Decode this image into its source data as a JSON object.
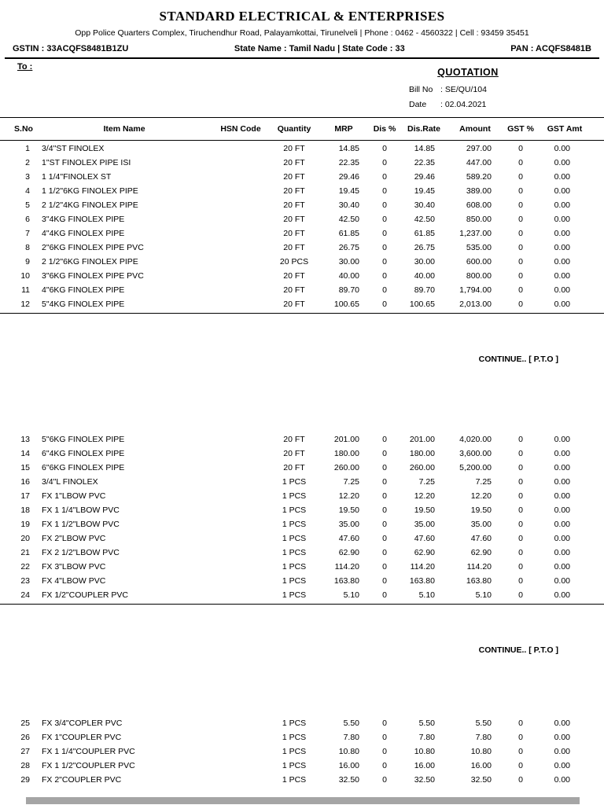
{
  "company": {
    "name": "STANDARD ELECTRICAL & ENTERPRISES",
    "address": "Opp Police Quarters Complex, Tiruchendhur Road,  Palayamkottai, Tirunelveli |  Phone : 0462 - 4560322 | Cell : 93459 35451",
    "gstin": "GSTIN :  33ACQFS8481B1ZU",
    "state": "State Name : Tamil Nadu   | State Code : 33",
    "pan": "PAN : ACQFS8481B"
  },
  "meta": {
    "to_label": "To :",
    "doc_title": "QUOTATION",
    "bill_no_label": "Bill No",
    "bill_no_value": ": SE/QU/104",
    "date_label": "Date",
    "date_value": ": 02.04.2021"
  },
  "table": {
    "columns": [
      "S.No",
      "Item Name",
      "HSN Code",
      "Quantity",
      "MRP",
      "Dis %",
      "Dis.Rate",
      "Amount",
      "GST %",
      "GST Amt"
    ],
    "continue_text": "CONTINUE.. [ P.T.O ]",
    "sections": [
      {
        "rows": [
          [
            "1",
            "3/4\"ST FINOLEX",
            "",
            "20 FT",
            "14.85",
            "0",
            "14.85",
            "297.00",
            "0",
            "0.00"
          ],
          [
            "2",
            "1\"ST FINOLEX PIPE ISI",
            "",
            "20 FT",
            "22.35",
            "0",
            "22.35",
            "447.00",
            "0",
            "0.00"
          ],
          [
            "3",
            "1 1/4\"FINOLEX ST",
            "",
            "20 FT",
            "29.46",
            "0",
            "29.46",
            "589.20",
            "0",
            "0.00"
          ],
          [
            "4",
            "1 1/2\"6KG FINOLEX PIPE",
            "",
            "20 FT",
            "19.45",
            "0",
            "19.45",
            "389.00",
            "0",
            "0.00"
          ],
          [
            "5",
            "2 1/2\"4KG FINOLEX PIPE",
            "",
            "20 FT",
            "30.40",
            "0",
            "30.40",
            "608.00",
            "0",
            "0.00"
          ],
          [
            "6",
            "3\"4KG FINOLEX PIPE",
            "",
            "20 FT",
            "42.50",
            "0",
            "42.50",
            "850.00",
            "0",
            "0.00"
          ],
          [
            "7",
            "4\"4KG FINOLEX PIPE",
            "",
            "20 FT",
            "61.85",
            "0",
            "61.85",
            "1,237.00",
            "0",
            "0.00"
          ],
          [
            "8",
            "2\"6KG FINOLEX PIPE PVC",
            "",
            "20 FT",
            "26.75",
            "0",
            "26.75",
            "535.00",
            "0",
            "0.00"
          ],
          [
            "9",
            "2 1/2\"6KG FINOLEX PIPE",
            "",
            "20 PCS",
            "30.00",
            "0",
            "30.00",
            "600.00",
            "0",
            "0.00"
          ],
          [
            "10",
            "3\"6KG FINOLEX PIPE PVC",
            "",
            "20 FT",
            "40.00",
            "0",
            "40.00",
            "800.00",
            "0",
            "0.00"
          ],
          [
            "11",
            "4\"6KG FINOLEX PIPE",
            "",
            "20 FT",
            "89.70",
            "0",
            "89.70",
            "1,794.00",
            "0",
            "0.00"
          ],
          [
            "12",
            "5\"4KG FINOLEX PIPE",
            "",
            "20 FT",
            "100.65",
            "0",
            "100.65",
            "2,013.00",
            "0",
            "0.00"
          ]
        ]
      },
      {
        "rows": [
          [
            "13",
            "5\"6KG FINOLEX PIPE",
            "",
            "20 FT",
            "201.00",
            "0",
            "201.00",
            "4,020.00",
            "0",
            "0.00"
          ],
          [
            "14",
            "6\"4KG FINOLEX PIPE",
            "",
            "20 FT",
            "180.00",
            "0",
            "180.00",
            "3,600.00",
            "0",
            "0.00"
          ],
          [
            "15",
            "6\"6KG FINOLEX PIPE",
            "",
            "20 FT",
            "260.00",
            "0",
            "260.00",
            "5,200.00",
            "0",
            "0.00"
          ],
          [
            "16",
            "3/4\"L FINOLEX",
            "",
            "1 PCS",
            "7.25",
            "0",
            "7.25",
            "7.25",
            "0",
            "0.00"
          ],
          [
            "17",
            "FX 1\"LBOW PVC",
            "",
            "1 PCS",
            "12.20",
            "0",
            "12.20",
            "12.20",
            "0",
            "0.00"
          ],
          [
            "18",
            "FX 1 1/4\"LBOW PVC",
            "",
            "1 PCS",
            "19.50",
            "0",
            "19.50",
            "19.50",
            "0",
            "0.00"
          ],
          [
            "19",
            "FX 1 1/2\"LBOW PVC",
            "",
            "1 PCS",
            "35.00",
            "0",
            "35.00",
            "35.00",
            "0",
            "0.00"
          ],
          [
            "20",
            "FX 2\"LBOW PVC",
            "",
            "1 PCS",
            "47.60",
            "0",
            "47.60",
            "47.60",
            "0",
            "0.00"
          ],
          [
            "21",
            "FX 2 1/2\"LBOW PVC",
            "",
            "1 PCS",
            "62.90",
            "0",
            "62.90",
            "62.90",
            "0",
            "0.00"
          ],
          [
            "22",
            "FX 3\"LBOW PVC",
            "",
            "1 PCS",
            "114.20",
            "0",
            "114.20",
            "114.20",
            "0",
            "0.00"
          ],
          [
            "23",
            "FX 4\"LBOW PVC",
            "",
            "1 PCS",
            "163.80",
            "0",
            "163.80",
            "163.80",
            "0",
            "0.00"
          ],
          [
            "24",
            "FX 1/2\"COUPLER PVC",
            "",
            "1 PCS",
            "5.10",
            "0",
            "5.10",
            "5.10",
            "0",
            "0.00"
          ]
        ]
      },
      {
        "rows": [
          [
            "25",
            "FX 3/4\"COPLER PVC",
            "",
            "1 PCS",
            "5.50",
            "0",
            "5.50",
            "5.50",
            "0",
            "0.00"
          ],
          [
            "26",
            "FX 1\"COUPLER PVC",
            "",
            "1 PCS",
            "7.80",
            "0",
            "7.80",
            "7.80",
            "0",
            "0.00"
          ],
          [
            "27",
            "FX 1 1/4\"COUPLER PVC",
            "",
            "1 PCS",
            "10.80",
            "0",
            "10.80",
            "10.80",
            "0",
            "0.00"
          ],
          [
            "28",
            "FX 1 1/2\"COUPLER PVC",
            "",
            "1 PCS",
            "16.00",
            "0",
            "16.00",
            "16.00",
            "0",
            "0.00"
          ],
          [
            "29",
            "FX 2\"COUPLER PVC",
            "",
            "1 PCS",
            "32.50",
            "0",
            "32.50",
            "32.50",
            "0",
            "0.00"
          ]
        ]
      }
    ]
  }
}
